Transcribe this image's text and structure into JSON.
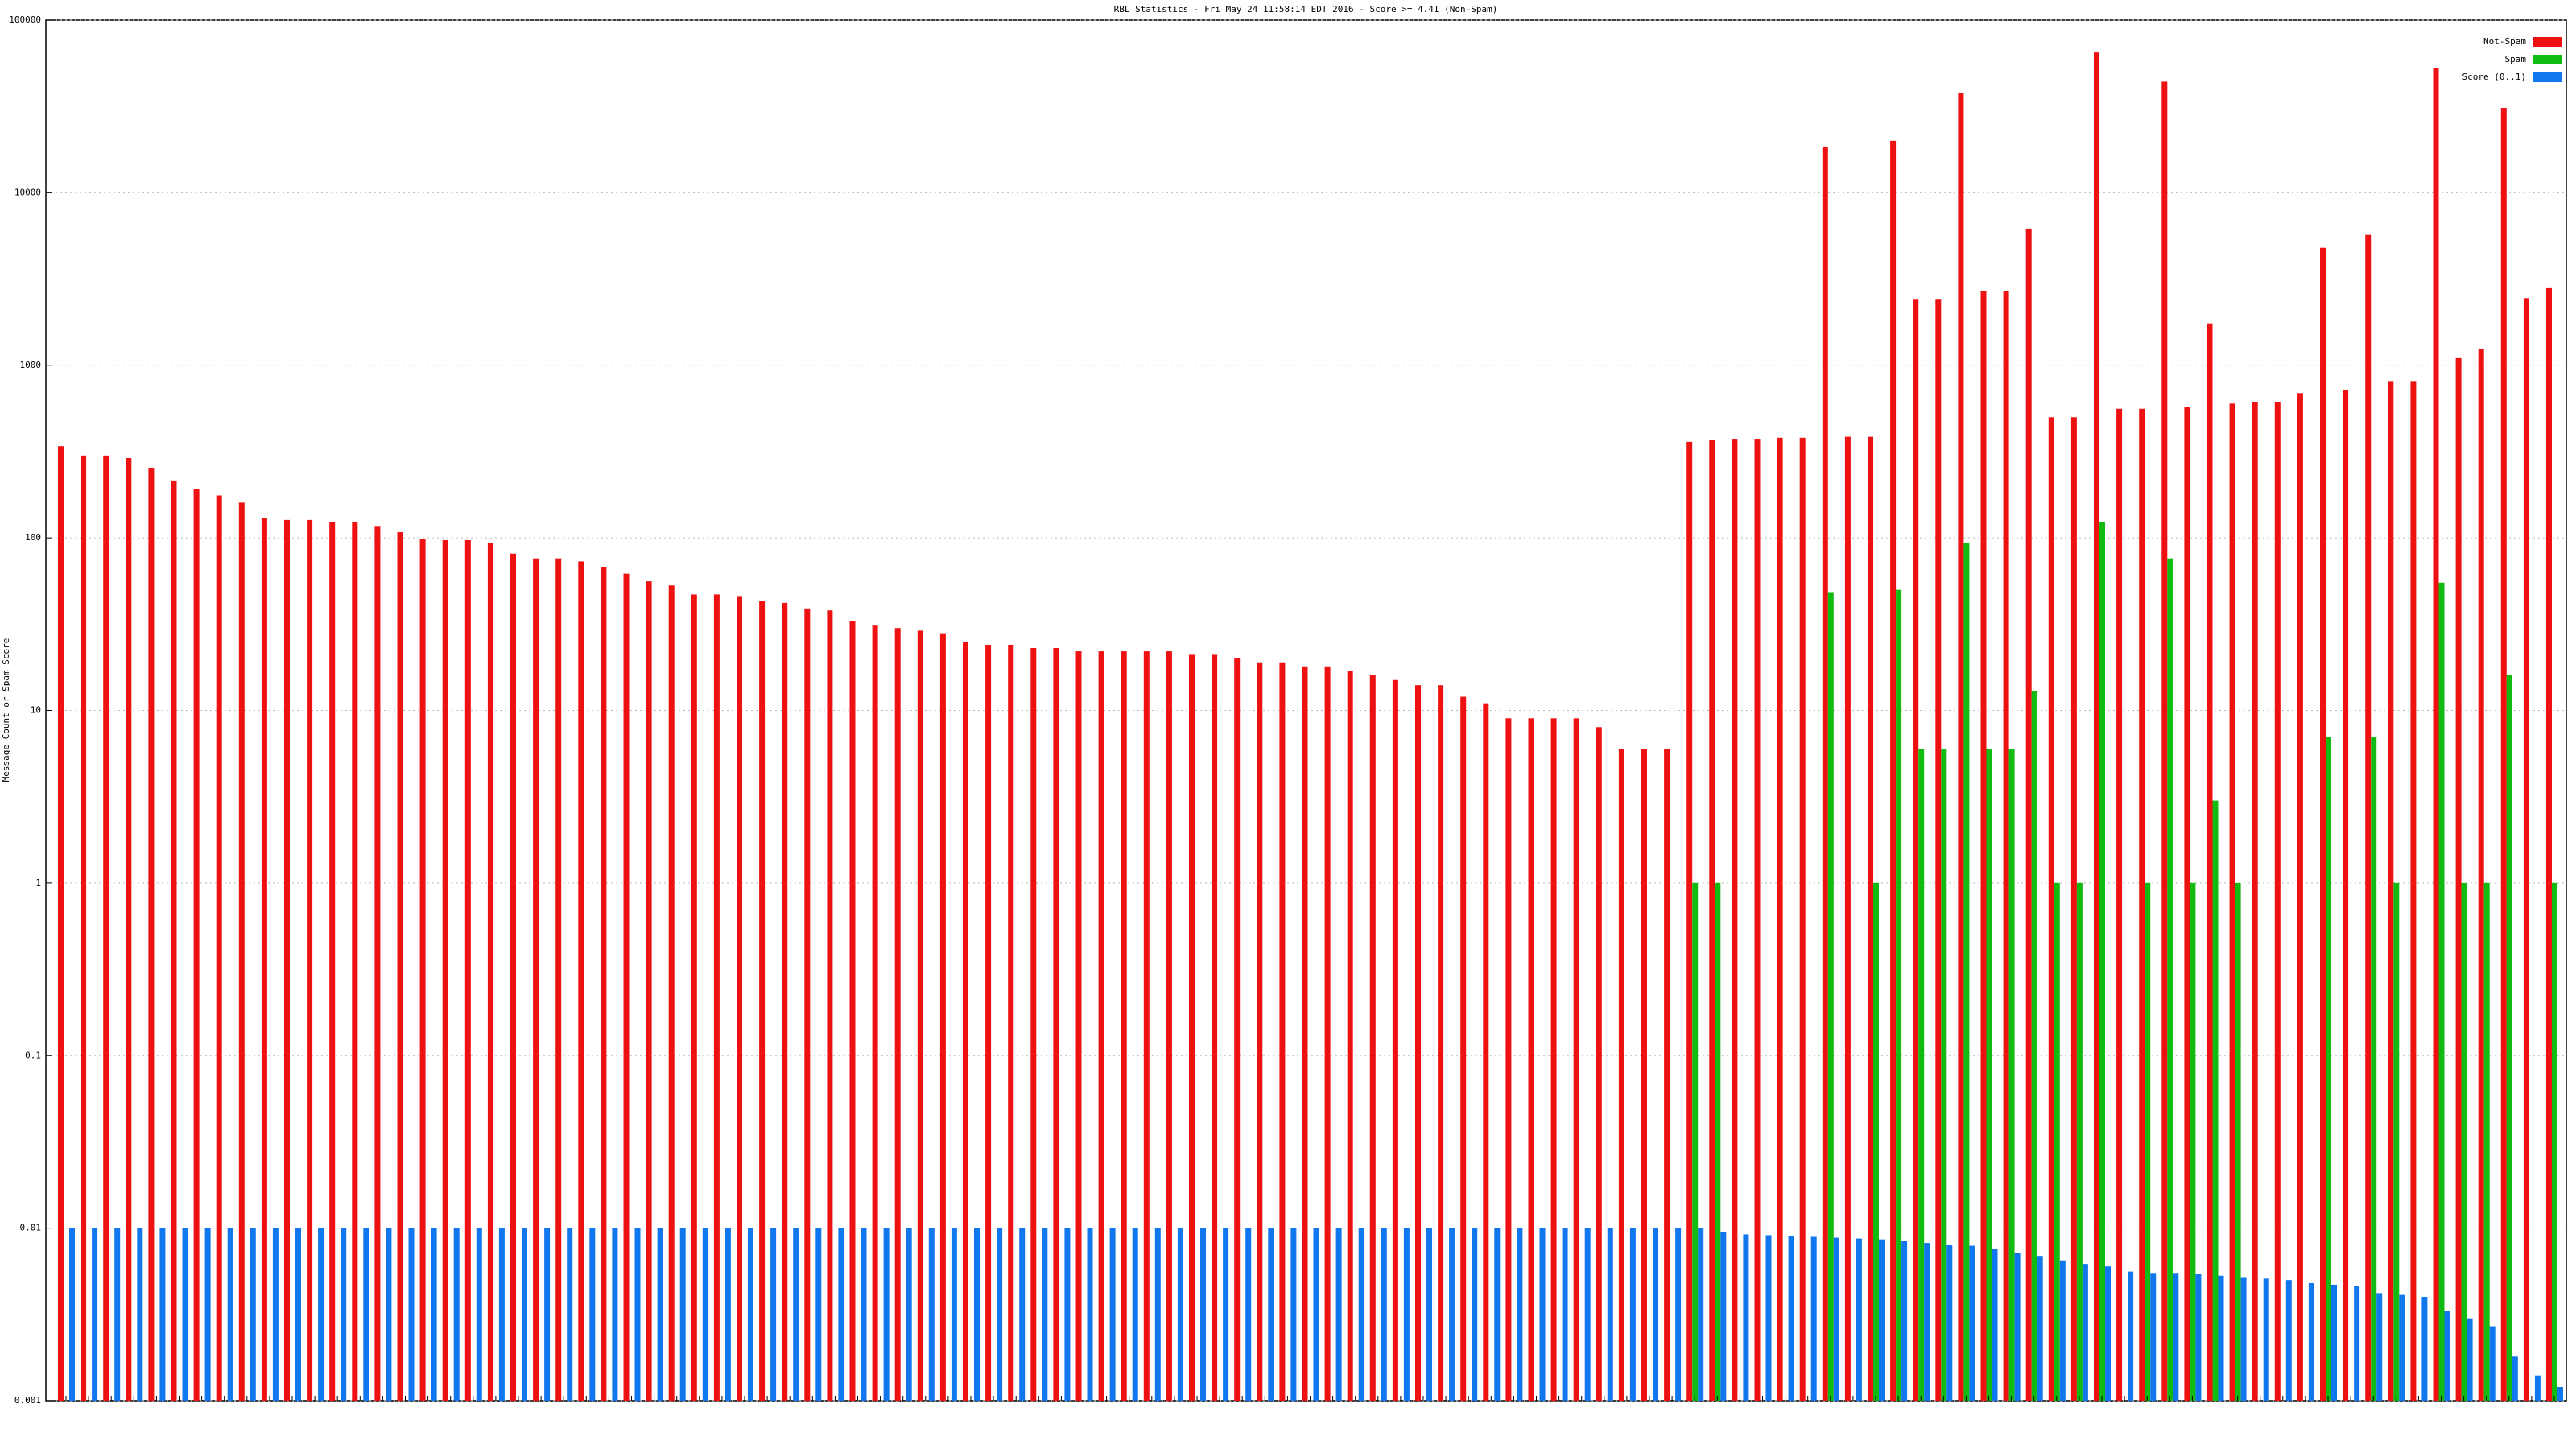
{
  "chart_data": {
    "type": "bar",
    "title": "RBL Statistics - Fri May 24 11:58:14 EDT 2016 - Score >= 4.41 (Non-Spam)",
    "y_label": "Message Count or Spam Score",
    "log_scale": true,
    "grid": true,
    "legend": "top-right",
    "ylim": [
      0.001,
      100000
    ],
    "yticks": [
      0.001,
      0.01,
      0.1,
      1,
      10,
      100,
      1000,
      10000,
      100000
    ],
    "categories": [
      null,
      null,
      null,
      null,
      null,
      null,
      null,
      null,
      null,
      null,
      null,
      null,
      null,
      null,
      null,
      null,
      null,
      null,
      null,
      null,
      null,
      null,
      null,
      null,
      null,
      null,
      null,
      null,
      null,
      null,
      null,
      null,
      null,
      null,
      null,
      null,
      null,
      null,
      null,
      null,
      null,
      null,
      null,
      null,
      null,
      null,
      null,
      null,
      null,
      null,
      null,
      null,
      null,
      null,
      null,
      null,
      null,
      null,
      null,
      null,
      null,
      null,
      null,
      null,
      null,
      null,
      null,
      null,
      null,
      null,
      null,
      null,
      null,
      null,
      null,
      null,
      null,
      null,
      null,
      null,
      null,
      null,
      null,
      null,
      null,
      null,
      null,
      null,
      null,
      null,
      null,
      null,
      null,
      null,
      null,
      null,
      null,
      null,
      null,
      null,
      null,
      null,
      null,
      null,
      null,
      null,
      null,
      null,
      null,
      null,
      null
    ],
    "series": [
      {
        "name": "Not-Spam",
        "color": "#ee1111",
        "values": [
          340,
          300,
          300,
          290,
          255,
          215,
          192,
          176,
          160,
          130,
          127,
          127,
          124,
          124,
          116,
          108,
          99,
          97,
          97,
          93,
          81,
          76,
          76,
          73,
          68,
          62,
          56,
          53,
          47,
          47,
          46,
          43,
          42,
          39,
          38,
          33,
          31,
          30,
          29,
          28,
          25,
          24,
          24,
          23,
          23,
          22,
          22,
          22,
          22,
          22,
          21,
          21,
          20,
          19,
          19,
          18,
          18,
          17,
          16,
          15,
          14,
          14,
          12,
          11,
          9,
          9,
          9,
          9,
          8,
          6,
          6,
          6,
          360,
          370,
          375,
          375,
          380,
          380,
          18500,
          385,
          385,
          20000,
          2400,
          2400,
          38000,
          2700,
          2700,
          6200,
          500,
          500,
          65000,
          560,
          560,
          44000,
          575,
          1750,
          600,
          615,
          615,
          690,
          4800,
          720,
          5700,
          810,
          810,
          53000,
          1100,
          1250,
          31000,
          2450,
          2800
        ]
      },
      {
        "name": "Spam",
        "color": "#11bb11",
        "values": [
          null,
          null,
          null,
          null,
          null,
          null,
          null,
          null,
          null,
          null,
          null,
          null,
          null,
          null,
          null,
          null,
          null,
          null,
          null,
          null,
          null,
          null,
          null,
          null,
          null,
          null,
          null,
          null,
          null,
          null,
          null,
          null,
          null,
          null,
          null,
          null,
          null,
          null,
          null,
          null,
          null,
          null,
          null,
          null,
          null,
          null,
          null,
          null,
          null,
          null,
          null,
          null,
          null,
          null,
          null,
          null,
          null,
          null,
          null,
          null,
          null,
          null,
          null,
          null,
          null,
          null,
          null,
          null,
          null,
          null,
          null,
          null,
          1,
          1,
          null,
          null,
          null,
          null,
          48,
          null,
          1,
          50,
          6,
          6,
          93,
          6,
          6,
          13,
          1,
          1,
          124,
          null,
          1,
          76,
          1,
          3,
          1,
          null,
          null,
          null,
          7,
          null,
          7,
          1,
          null,
          55,
          1,
          1,
          16,
          null,
          1
        ]
      },
      {
        "name": "Score (0..1)",
        "color": "#1177ee",
        "values": [
          0.01,
          0.01,
          0.01,
          0.01,
          0.01,
          0.01,
          0.01,
          0.01,
          0.01,
          0.01,
          0.01,
          0.01,
          0.01,
          0.01,
          0.01,
          0.01,
          0.01,
          0.01,
          0.01,
          0.01,
          0.01,
          0.01,
          0.01,
          0.01,
          0.01,
          0.01,
          0.01,
          0.01,
          0.01,
          0.01,
          0.01,
          0.01,
          0.01,
          0.01,
          0.01,
          0.01,
          0.01,
          0.01,
          0.01,
          0.01,
          0.01,
          0.01,
          0.01,
          0.01,
          0.01,
          0.01,
          0.01,
          0.01,
          0.01,
          0.01,
          0.01,
          0.01,
          0.01,
          0.01,
          0.01,
          0.01,
          0.01,
          0.01,
          0.01,
          0.01,
          0.01,
          0.01,
          0.01,
          0.01,
          0.01,
          0.01,
          0.01,
          0.01,
          0.01,
          0.01,
          0.01,
          0.01,
          0.01,
          0.0095,
          0.0092,
          0.0091,
          0.009,
          0.0089,
          0.0088,
          0.0087,
          0.0086,
          0.0084,
          0.0082,
          0.008,
          0.0079,
          0.0076,
          0.0072,
          0.0069,
          0.0065,
          0.0062,
          0.006,
          0.0056,
          0.0055,
          0.0055,
          0.0054,
          0.0053,
          0.0052,
          0.0051,
          0.005,
          0.0048,
          0.0047,
          0.0046,
          0.0042,
          0.0041,
          0.004,
          0.0033,
          0.003,
          0.0027,
          0.0018,
          0.0014,
          0.0012
        ]
      }
    ]
  }
}
